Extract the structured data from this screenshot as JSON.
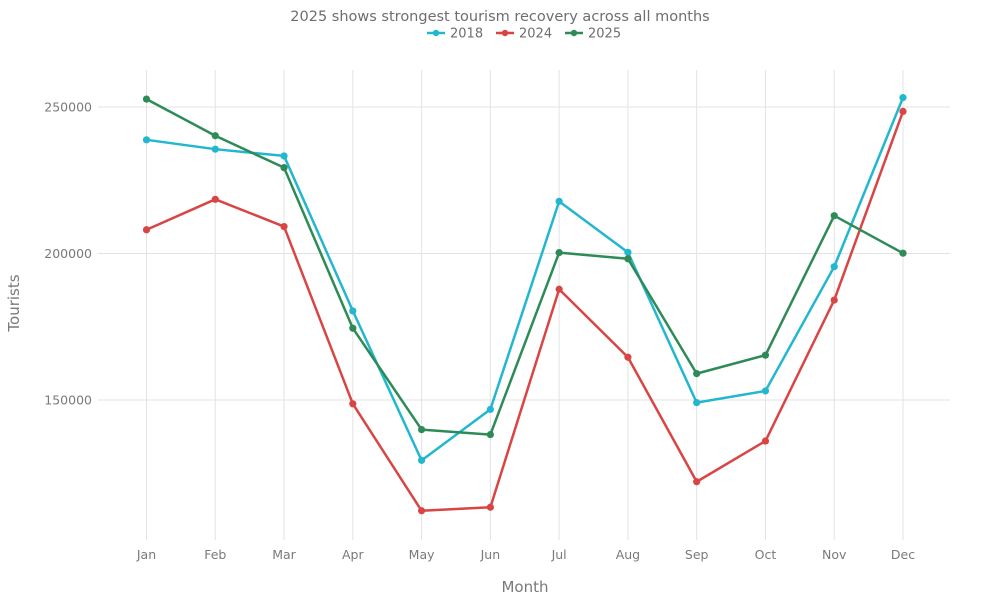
{
  "chart_data": {
    "type": "line",
    "title": "2025 shows strongest tourism recovery across all months",
    "xlabel": "Month",
    "ylabel": "Tourists",
    "categories": [
      "Jan",
      "Feb",
      "Mar",
      "Apr",
      "May",
      "Jun",
      "Jul",
      "Aug",
      "Sep",
      "Oct",
      "Nov",
      "Dec"
    ],
    "yticks": [
      150000,
      200000,
      250000
    ],
    "ytick_labels": [
      "150000",
      "200000",
      "250000"
    ],
    "ylim": [
      101000,
      262000
    ],
    "grid": true,
    "legend_position": "top-center",
    "series": [
      {
        "name": "2018",
        "color": "#23b7cf",
        "values": [
          238800,
          235600,
          233300,
          180400,
          129400,
          146800,
          217800,
          200400,
          149100,
          153100,
          195500,
          253200
        ]
      },
      {
        "name": "2024",
        "color": "#d94545",
        "values": [
          208100,
          218500,
          209200,
          148700,
          112200,
          113400,
          187800,
          164600,
          122100,
          136000,
          184100,
          248500
        ]
      },
      {
        "name": "2025",
        "color": "#2e8b57",
        "values": [
          252700,
          240200,
          229300,
          174500,
          139900,
          138200,
          200300,
          198200,
          159000,
          165300,
          212900,
          200100
        ]
      }
    ]
  }
}
